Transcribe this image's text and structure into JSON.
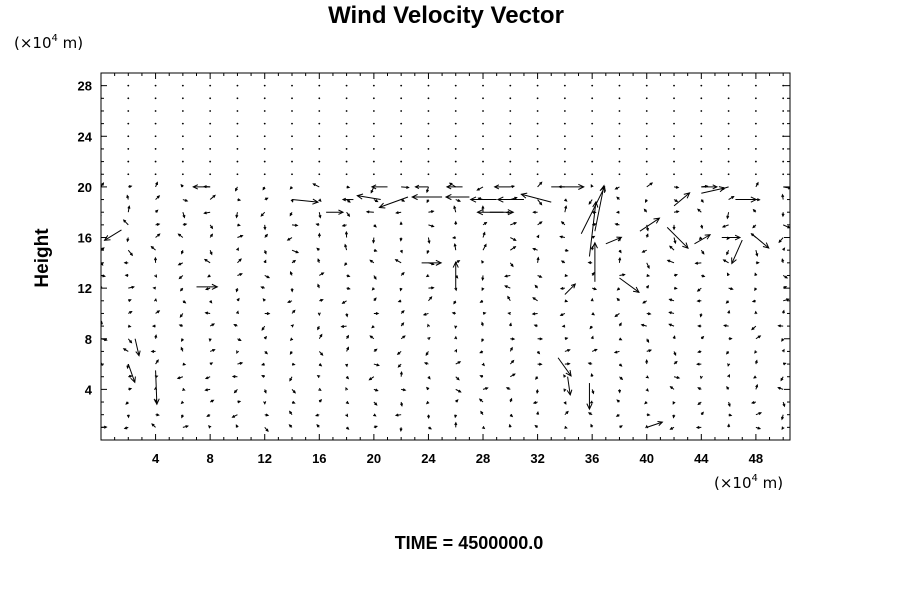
{
  "chart_data": {
    "type": "vector-field",
    "title": "Wind Velocity Vector",
    "ylabel": "Height",
    "x_unit_prefix": "(×10",
    "x_unit_exp": "4",
    "x_unit_suffix": " m)",
    "y_unit_prefix": "(×10",
    "y_unit_exp": "4",
    "y_unit_suffix": " m)",
    "xlim": [
      0,
      50.5
    ],
    "ylim": [
      0,
      29
    ],
    "xticks": [
      4,
      8,
      12,
      16,
      20,
      24,
      28,
      32,
      36,
      40,
      44,
      48
    ],
    "yticks": [
      4,
      8,
      12,
      16,
      20,
      24,
      28
    ],
    "grid": false,
    "vectors": [
      {
        "x": 1.5,
        "y": 16.6,
        "u": -1.3,
        "v": -0.8
      },
      {
        "x": 2.5,
        "y": 8.0,
        "u": 0.3,
        "v": -1.3
      },
      {
        "x": 2.0,
        "y": 6.0,
        "u": 0.5,
        "v": -1.4
      },
      {
        "x": 4.0,
        "y": 5.5,
        "u": 0.1,
        "v": -2.6
      },
      {
        "x": 7.0,
        "y": 12.1,
        "u": 1.6,
        "v": 0.0
      },
      {
        "x": 8.0,
        "y": 20.0,
        "u": -1.3,
        "v": 0.0
      },
      {
        "x": 14.0,
        "y": 19.0,
        "u": 2.0,
        "v": -0.2
      },
      {
        "x": 16.5,
        "y": 18.0,
        "u": 1.3,
        "v": 0.0
      },
      {
        "x": 18.5,
        "y": 19.0,
        "u": -0.8,
        "v": 0.0
      },
      {
        "x": 20.5,
        "y": 19.0,
        "u": -1.8,
        "v": 0.3
      },
      {
        "x": 22.5,
        "y": 19.2,
        "u": -2.2,
        "v": -0.8
      },
      {
        "x": 25.0,
        "y": 19.2,
        "u": -2.3,
        "v": 0.0
      },
      {
        "x": 27.0,
        "y": 19.2,
        "u": -1.8,
        "v": 0.0
      },
      {
        "x": 29.0,
        "y": 19.0,
        "u": -2.0,
        "v": 0.0
      },
      {
        "x": 31.0,
        "y": 19.0,
        "u": -2.0,
        "v": 0.0
      },
      {
        "x": 33.0,
        "y": 18.8,
        "u": -2.3,
        "v": 0.6
      },
      {
        "x": 30.0,
        "y": 20.0,
        "u": -1.2,
        "v": 0.0
      },
      {
        "x": 29.5,
        "y": 18.0,
        "u": -2.0,
        "v": 0.0
      },
      {
        "x": 28.5,
        "y": 18.0,
        "u": 1.8,
        "v": 0.0
      },
      {
        "x": 33.0,
        "y": 20.0,
        "u": 2.5,
        "v": 0.0
      },
      {
        "x": 26.0,
        "y": 12.0,
        "u": 0.0,
        "v": 2.0
      },
      {
        "x": 35.2,
        "y": 16.3,
        "u": 1.8,
        "v": 3.6
      },
      {
        "x": 36.2,
        "y": 16.5,
        "u": 0.7,
        "v": 3.5
      },
      {
        "x": 35.8,
        "y": 14.5,
        "u": 0.5,
        "v": 4.2
      },
      {
        "x": 36.2,
        "y": 12.5,
        "u": 0.0,
        "v": 3.0
      },
      {
        "x": 37.0,
        "y": 15.5,
        "u": 1.2,
        "v": 0.5
      },
      {
        "x": 38.0,
        "y": 12.8,
        "u": 1.5,
        "v": -1.1
      },
      {
        "x": 39.5,
        "y": 16.5,
        "u": 1.5,
        "v": 1.0
      },
      {
        "x": 41.5,
        "y": 16.8,
        "u": 1.6,
        "v": -1.6
      },
      {
        "x": 42.0,
        "y": 18.5,
        "u": 1.2,
        "v": 1.0
      },
      {
        "x": 44.0,
        "y": 19.5,
        "u": 1.8,
        "v": 0.4
      },
      {
        "x": 46.5,
        "y": 19.0,
        "u": 1.6,
        "v": 0.0
      },
      {
        "x": 47.0,
        "y": 15.8,
        "u": -0.8,
        "v": -1.8
      },
      {
        "x": 47.8,
        "y": 16.2,
        "u": 1.2,
        "v": -1.0
      },
      {
        "x": 45.5,
        "y": 16.0,
        "u": 1.4,
        "v": 0.0
      },
      {
        "x": 43.5,
        "y": 15.5,
        "u": 1.2,
        "v": 0.7
      },
      {
        "x": 34.0,
        "y": 11.5,
        "u": 0.8,
        "v": 0.8
      },
      {
        "x": 33.5,
        "y": 6.5,
        "u": 1.0,
        "v": -1.4
      },
      {
        "x": 34.2,
        "y": 5.0,
        "u": 0.2,
        "v": -1.4
      },
      {
        "x": 35.8,
        "y": 4.5,
        "u": 0.0,
        "v": -2.0
      },
      {
        "x": 40.0,
        "y": 1.0,
        "u": 1.2,
        "v": 0.4
      },
      {
        "x": 23.5,
        "y": 14.0,
        "u": 1.5,
        "v": 0.0
      },
      {
        "x": 21.0,
        "y": 20.0,
        "u": -1.2,
        "v": 0.0
      },
      {
        "x": 24.0,
        "y": 20.0,
        "u": -1.0,
        "v": 0.0
      },
      {
        "x": 26.5,
        "y": 20.0,
        "u": -1.2,
        "v": 0.0
      },
      {
        "x": 44.0,
        "y": 20.0,
        "u": 1.2,
        "v": 0.0
      }
    ]
  },
  "footer": {
    "time_label": "TIME = 4500000.0"
  }
}
